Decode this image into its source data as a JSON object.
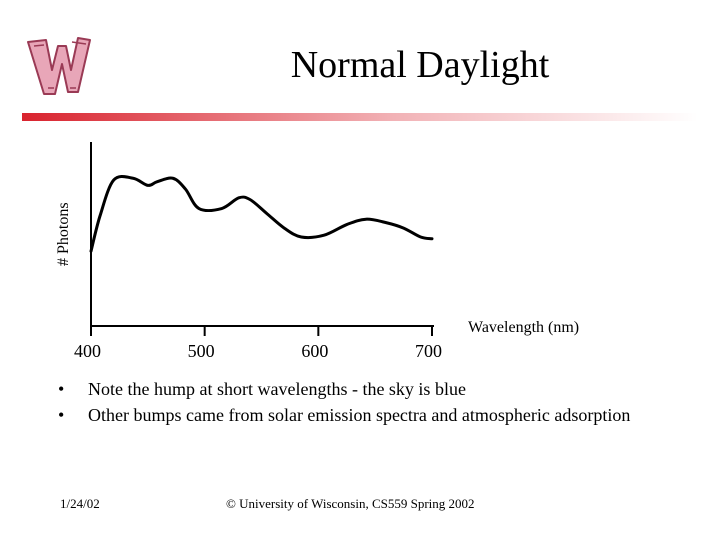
{
  "slide": {
    "title": "Normal Daylight",
    "bullets": [
      "Note the hump at short wavelengths - the sky is blue",
      "Other bumps came from solar emission spectra and atmospheric adsorption"
    ],
    "footer_date": "1/24/02",
    "footer_copyright": "© University of Wisconsin, CS559 Spring 2002",
    "logo_icon": "university-w-logo-icon",
    "accent_color": "#d9232e"
  },
  "chart_data": {
    "type": "line",
    "title": "",
    "xlabel": "Wavelength (nm)",
    "ylabel": "# Photons",
    "xlim": [
      400,
      700
    ],
    "ylim": [
      0,
      1
    ],
    "x_ticks": [
      400,
      500,
      600,
      700
    ],
    "grid": false,
    "series": [
      {
        "color": "#000000",
        "x": [
          400,
          408,
          420,
          437,
          450,
          458,
          472,
          483,
          495,
          515,
          530,
          540,
          555,
          570,
          585,
          605,
          625,
          642,
          660,
          675,
          690,
          700
        ],
        "y": [
          0.42,
          0.62,
          0.82,
          0.83,
          0.79,
          0.81,
          0.83,
          0.77,
          0.66,
          0.66,
          0.72,
          0.71,
          0.63,
          0.55,
          0.5,
          0.51,
          0.57,
          0.6,
          0.58,
          0.55,
          0.5,
          0.49
        ]
      }
    ]
  }
}
